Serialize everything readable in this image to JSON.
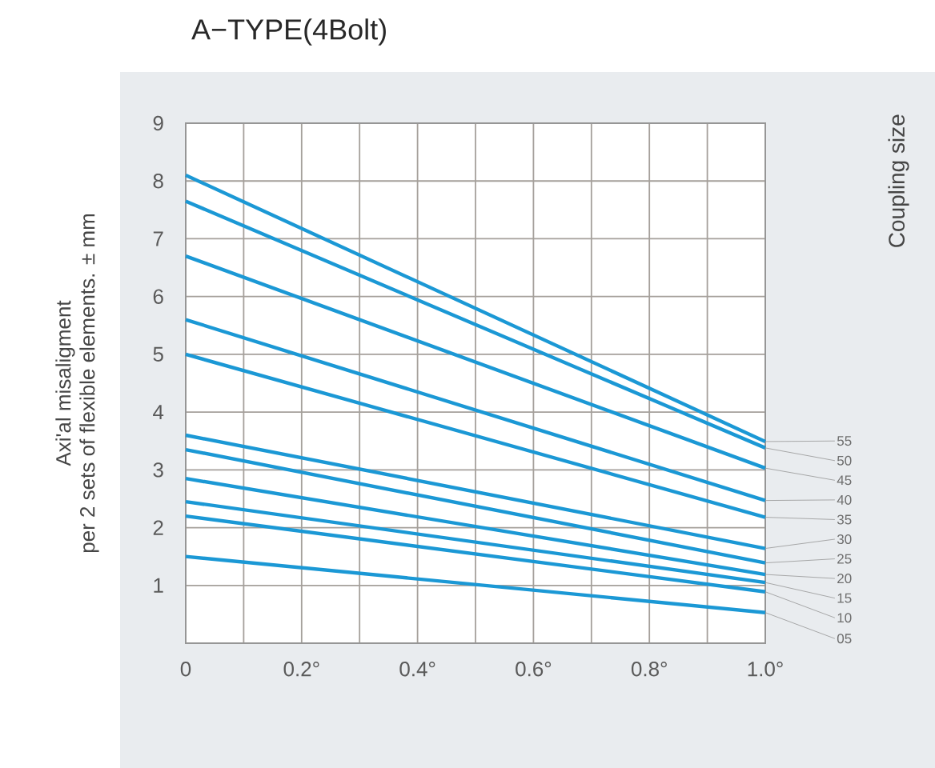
{
  "chart_data": {
    "type": "line",
    "title": "A−TYPE(4Bolt)",
    "ylabel": "Axi'al misaligment\nper 2 sets of flexible elements. ± mm",
    "legend_title": "Coupling size",
    "x": [
      0,
      1.0
    ],
    "series": [
      {
        "name": "05",
        "color": "#1b98d5",
        "values": [
          1.5,
          0.53
        ]
      },
      {
        "name": "10",
        "color": "#1b98d5",
        "values": [
          2.2,
          0.89
        ]
      },
      {
        "name": "15",
        "color": "#1b98d5",
        "values": [
          2.45,
          1.05
        ]
      },
      {
        "name": "20",
        "color": "#1b98d5",
        "values": [
          2.85,
          1.19
        ]
      },
      {
        "name": "25",
        "color": "#1b98d5",
        "values": [
          3.35,
          1.39
        ]
      },
      {
        "name": "30",
        "color": "#1b98d5",
        "values": [
          3.6,
          1.64
        ]
      },
      {
        "name": "35",
        "color": "#1b98d5",
        "values": [
          5.0,
          2.18
        ]
      },
      {
        "name": "40",
        "color": "#1b98d5",
        "values": [
          5.6,
          2.47
        ]
      },
      {
        "name": "45",
        "color": "#1b98d5",
        "values": [
          6.7,
          3.03
        ]
      },
      {
        "name": "50",
        "color": "#1b98d5",
        "values": [
          7.65,
          3.38
        ]
      },
      {
        "name": "55",
        "color": "#1b98d5",
        "values": [
          8.1,
          3.49
        ]
      }
    ],
    "xlim": [
      0,
      1.0
    ],
    "ylim": [
      0,
      9
    ],
    "xticks": [
      0,
      {
        "value": 0.1,
        "label": null
      },
      {
        "value": 0.2,
        "label": "0.2°"
      },
      {
        "value": 0.3,
        "label": null
      },
      {
        "value": 0.4,
        "label": "0.4°"
      },
      {
        "value": 0.5,
        "label": null
      },
      {
        "value": 0.6,
        "label": "0.6°"
      },
      {
        "value": 0.7,
        "label": null
      },
      {
        "value": 0.8,
        "label": "0.8°"
      },
      {
        "value": 0.9,
        "label": null
      },
      {
        "value": 1.0,
        "label": "1.0°"
      }
    ],
    "yticks": [
      1,
      2,
      3,
      4,
      5,
      6,
      7,
      8,
      9
    ],
    "grid": true,
    "marker": "none",
    "line_style": "solid"
  }
}
